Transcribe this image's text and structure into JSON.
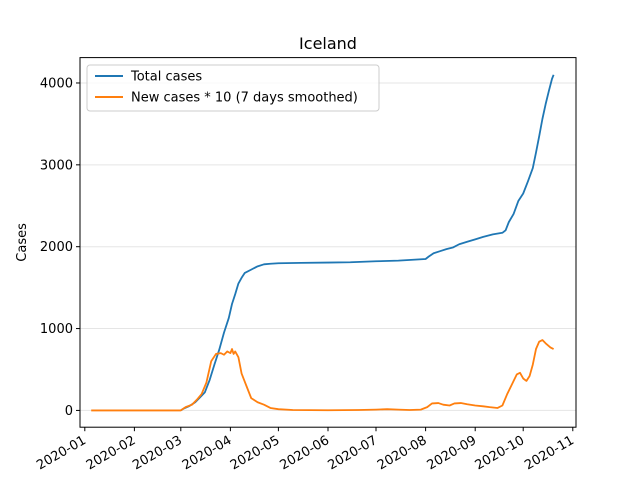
{
  "chart_data": {
    "type": "line",
    "title": "Iceland",
    "xlabel": "",
    "ylabel": "Cases",
    "x_tick_labels": [
      "2020-01",
      "2020-02",
      "2020-03",
      "2020-04",
      "2020-05",
      "2020-06",
      "2020-07",
      "2020-08",
      "2020-09",
      "2020-10",
      "2020-11"
    ],
    "y_tick_labels": [
      "0",
      "1000",
      "2000",
      "3000",
      "4000"
    ],
    "xlim": [
      "2019-12-29",
      "2020-11-03"
    ],
    "ylim": [
      -205,
      4310
    ],
    "grid": "horizontal",
    "legend": "top-left",
    "colors": {
      "total": "#1f77b4",
      "new": "#ff7f0e",
      "grid": "#e5e5e5"
    },
    "series": [
      {
        "name": "Total cases",
        "color": "#1f77b4",
        "points": [
          [
            "2020-03-01",
            0
          ],
          [
            "2020-03-03",
            25
          ],
          [
            "2020-03-06",
            50
          ],
          [
            "2020-03-10",
            100
          ],
          [
            "2020-03-13",
            160
          ],
          [
            "2020-03-16",
            220
          ],
          [
            "2020-03-19",
            370
          ],
          [
            "2020-03-22",
            560
          ],
          [
            "2020-03-25",
            740
          ],
          [
            "2020-03-28",
            950
          ],
          [
            "2020-03-31",
            1130
          ],
          [
            "2020-04-02",
            1300
          ],
          [
            "2020-04-04",
            1420
          ],
          [
            "2020-04-06",
            1550
          ],
          [
            "2020-04-08",
            1620
          ],
          [
            "2020-04-10",
            1680
          ],
          [
            "2020-04-14",
            1720
          ],
          [
            "2020-04-18",
            1760
          ],
          [
            "2020-04-22",
            1785
          ],
          [
            "2020-04-26",
            1792
          ],
          [
            "2020-05-01",
            1798
          ],
          [
            "2020-05-15",
            1802
          ],
          [
            "2020-06-01",
            1806
          ],
          [
            "2020-06-15",
            1810
          ],
          [
            "2020-07-01",
            1822
          ],
          [
            "2020-07-15",
            1830
          ],
          [
            "2020-08-01",
            1850
          ],
          [
            "2020-08-03",
            1880
          ],
          [
            "2020-08-06",
            1920
          ],
          [
            "2020-08-10",
            1945
          ],
          [
            "2020-08-14",
            1970
          ],
          [
            "2020-08-18",
            1990
          ],
          [
            "2020-08-22",
            2030
          ],
          [
            "2020-08-27",
            2060
          ],
          [
            "2020-09-01",
            2090
          ],
          [
            "2020-09-06",
            2120
          ],
          [
            "2020-09-12",
            2150
          ],
          [
            "2020-09-18",
            2170
          ],
          [
            "2020-09-20",
            2200
          ],
          [
            "2020-09-22",
            2300
          ],
          [
            "2020-09-25",
            2400
          ],
          [
            "2020-09-28",
            2560
          ],
          [
            "2020-10-01",
            2650
          ],
          [
            "2020-10-04",
            2800
          ],
          [
            "2020-10-07",
            2960
          ],
          [
            "2020-10-09",
            3150
          ],
          [
            "2020-10-11",
            3350
          ],
          [
            "2020-10-13",
            3560
          ],
          [
            "2020-10-15",
            3740
          ],
          [
            "2020-10-17",
            3900
          ],
          [
            "2020-10-19",
            4050
          ],
          [
            "2020-10-20",
            4100
          ]
        ]
      },
      {
        "name": "New cases * 10 (7 days smoothed)",
        "color": "#ff7f0e",
        "points": [
          [
            "2020-01-05",
            0
          ],
          [
            "2020-02-01",
            0
          ],
          [
            "2020-02-25",
            0
          ],
          [
            "2020-03-01",
            0
          ],
          [
            "2020-03-04",
            40
          ],
          [
            "2020-03-08",
            70
          ],
          [
            "2020-03-11",
            130
          ],
          [
            "2020-03-14",
            200
          ],
          [
            "2020-03-17",
            340
          ],
          [
            "2020-03-20",
            600
          ],
          [
            "2020-03-23",
            690
          ],
          [
            "2020-03-26",
            700
          ],
          [
            "2020-03-28",
            680
          ],
          [
            "2020-03-30",
            720
          ],
          [
            "2020-04-01",
            700
          ],
          [
            "2020-04-02",
            750
          ],
          [
            "2020-04-03",
            690
          ],
          [
            "2020-04-04",
            720
          ],
          [
            "2020-04-06",
            650
          ],
          [
            "2020-04-08",
            450
          ],
          [
            "2020-04-11",
            300
          ],
          [
            "2020-04-14",
            150
          ],
          [
            "2020-04-18",
            100
          ],
          [
            "2020-04-22",
            70
          ],
          [
            "2020-04-26",
            30
          ],
          [
            "2020-05-01",
            15
          ],
          [
            "2020-05-10",
            5
          ],
          [
            "2020-06-01",
            2
          ],
          [
            "2020-06-20",
            5
          ],
          [
            "2020-07-01",
            10
          ],
          [
            "2020-07-08",
            15
          ],
          [
            "2020-07-15",
            10
          ],
          [
            "2020-07-22",
            5
          ],
          [
            "2020-07-29",
            10
          ],
          [
            "2020-08-02",
            40
          ],
          [
            "2020-08-05",
            85
          ],
          [
            "2020-08-09",
            90
          ],
          [
            "2020-08-12",
            70
          ],
          [
            "2020-08-16",
            60
          ],
          [
            "2020-08-19",
            85
          ],
          [
            "2020-08-23",
            90
          ],
          [
            "2020-08-27",
            75
          ],
          [
            "2020-09-01",
            60
          ],
          [
            "2020-09-06",
            50
          ],
          [
            "2020-09-10",
            40
          ],
          [
            "2020-09-15",
            30
          ],
          [
            "2020-09-18",
            60
          ],
          [
            "2020-09-21",
            200
          ],
          [
            "2020-09-24",
            320
          ],
          [
            "2020-09-27",
            440
          ],
          [
            "2020-09-29",
            460
          ],
          [
            "2020-10-01",
            390
          ],
          [
            "2020-10-03",
            360
          ],
          [
            "2020-10-05",
            420
          ],
          [
            "2020-10-07",
            560
          ],
          [
            "2020-10-09",
            750
          ],
          [
            "2020-10-11",
            840
          ],
          [
            "2020-10-13",
            860
          ],
          [
            "2020-10-15",
            820
          ],
          [
            "2020-10-18",
            770
          ],
          [
            "2020-10-20",
            750
          ]
        ]
      }
    ]
  }
}
